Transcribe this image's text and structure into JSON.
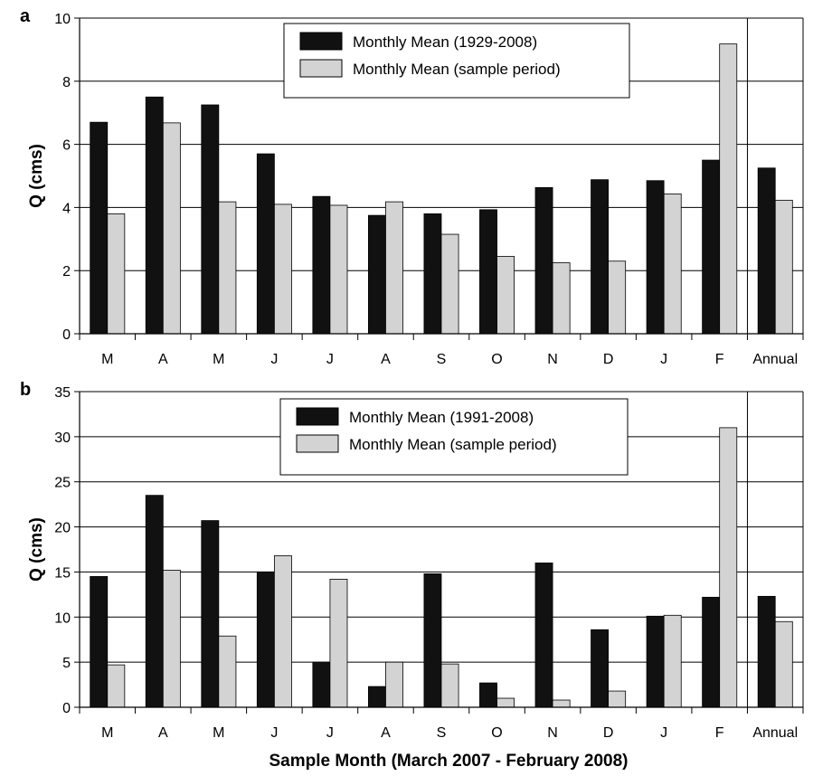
{
  "colors": {
    "series_1": "#111111",
    "series_2": "#d3d3d3",
    "bar_stroke": "#000000",
    "grid": "#000000"
  },
  "x_axis_label": "Sample Month (March 2007 - February 2008)",
  "chart_data": [
    {
      "type": "bar",
      "panel_label": "a",
      "ylabel": "Q (cms)",
      "ylim": [
        0,
        10
      ],
      "yticks": [
        0,
        2,
        4,
        6,
        8,
        10
      ],
      "grid": true,
      "legend_position": "top-center",
      "categories": [
        "M",
        "A",
        "M",
        "J",
        "J",
        "A",
        "S",
        "O",
        "N",
        "D",
        "J",
        "F",
        "Annual"
      ],
      "series": [
        {
          "name": "Monthly Mean (1929-2008)",
          "values": [
            6.7,
            7.5,
            7.25,
            5.7,
            4.35,
            3.75,
            3.8,
            3.93,
            4.63,
            4.88,
            4.85,
            5.5,
            5.25
          ]
        },
        {
          "name": "Monthly Mean (sample period)",
          "values": [
            3.8,
            6.68,
            4.18,
            4.1,
            4.07,
            4.18,
            3.15,
            2.45,
            2.25,
            2.3,
            4.43,
            9.18,
            4.23
          ]
        }
      ]
    },
    {
      "type": "bar",
      "panel_label": "b",
      "ylabel": "Q (cms)",
      "ylim": [
        0,
        35
      ],
      "yticks": [
        0,
        5,
        10,
        15,
        20,
        25,
        30,
        35
      ],
      "grid": true,
      "legend_position": "top-center",
      "categories": [
        "M",
        "A",
        "M",
        "J",
        "J",
        "A",
        "S",
        "O",
        "N",
        "D",
        "J",
        "F",
        "Annual"
      ],
      "series": [
        {
          "name": "Monthly Mean (1991-2008)",
          "values": [
            14.5,
            23.5,
            20.7,
            15.0,
            5.0,
            2.3,
            14.8,
            2.7,
            16.0,
            8.6,
            10.1,
            12.2,
            12.3
          ]
        },
        {
          "name": "Monthly Mean (sample period)",
          "values": [
            4.7,
            15.2,
            7.9,
            16.8,
            14.2,
            5.0,
            4.8,
            1.0,
            0.8,
            1.8,
            10.2,
            31.0,
            9.5
          ]
        }
      ]
    }
  ]
}
